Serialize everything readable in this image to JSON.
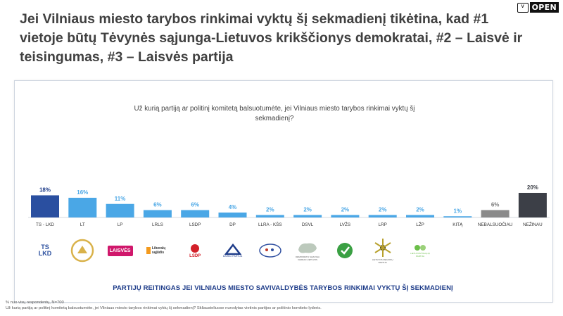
{
  "header": {
    "title": "Jei Vilniaus miesto tarybos rinkimai vyktų šį sekmadienį tikėtina, kad #1 vietoje būtų Tėvynės sąjunga-Lietuvos krikščionys demokratai, #2 – Laisvė ir teisingumas, #3 – Laisvės partija",
    "brand_word": "OPEN",
    "brand_mark": "VILMORUS"
  },
  "question": "Už kurią partiją ar politinį komitetą balsuotumėte, jei Vilniaus miesto tarybos rinkimai vyktų šį sekmadienį?",
  "caption": "PARTIJŲ REITINGAS JEI VILNIAUS MIESTO SAVIVALDYBĖS TARYBOS RINKIMAI VYKTŲ ŠĮ SEKMADIENĮ",
  "footnotes": [
    "% nuo visų respondentų, N=700",
    "Už kurią partiją ar politinį komitetą balsuotumėte, jei Vilniaus miesto tarybos rinkimai vyktų šį sekmadienį? Skliausteliuose nurodytas vietinis partijos ar politinio komiteto lyderis."
  ],
  "party_logos": [
    {
      "icon": "ts-lkd-logo-icon",
      "text": "TS LKD",
      "color": "#2b4f9e"
    },
    {
      "icon": "lt-logo-icon",
      "text": "",
      "color": "#d9b24a"
    },
    {
      "icon": "lp-logo-icon",
      "text": "LAISVĖS",
      "color": "#d0176b"
    },
    {
      "icon": "lrls-logo-icon",
      "text": "Liberalų sąjūdis",
      "color": "#f39a1e"
    },
    {
      "icon": "lsdp-logo-icon",
      "text": "LSDP",
      "color": "#d32029"
    },
    {
      "icon": "dp-logo-icon",
      "text": "DARBO PARTIJA",
      "color": "#1f3d8a"
    },
    {
      "icon": "llra-kss-logo-icon",
      "text": "",
      "color": "#2f4fa0"
    },
    {
      "icon": "dsvl-logo-icon",
      "text": "DEMOKRATŲ SĄJUNGA VARDAN LIETUVOS",
      "color": "#8fa58f"
    },
    {
      "icon": "lvzs-logo-icon",
      "text": "",
      "color": "#3aa043"
    },
    {
      "icon": "lrp-logo-icon",
      "text": "LIETUVOS REGIONŲ PARTIJA",
      "color": "#b8a12d"
    },
    {
      "icon": "lzp-logo-icon",
      "text": "LIETUVOS ŽALIŲJŲ PARTIJA",
      "color": "#6cbf4a"
    }
  ],
  "chart_data": {
    "type": "bar",
    "title": "",
    "xlabel": "",
    "ylabel": "",
    "unit": "%",
    "ylim": [
      0,
      20
    ],
    "categories": [
      "TS - LKD",
      "LT",
      "LP",
      "LRLS",
      "LSDP",
      "DP",
      "LLRA - KŠS",
      "DSVL",
      "LVŽS",
      "LRP",
      "LŽP",
      "KITĄ",
      "NEBALSUOČIAU",
      "NEŽINAU"
    ],
    "values": [
      18,
      16,
      11,
      6,
      6,
      4,
      2,
      2,
      2,
      2,
      2,
      1,
      6,
      20
    ],
    "value_labels": [
      "18%",
      "16%",
      "11%",
      "6%",
      "6%",
      "4%",
      "2%",
      "2%",
      "2%",
      "2%",
      "2%",
      "1%",
      "6%",
      "20%"
    ],
    "colors": [
      "#2a4fa0",
      "#4aa7e6",
      "#4aa7e6",
      "#4aa7e6",
      "#4aa7e6",
      "#4aa7e6",
      "#4aa7e6",
      "#4aa7e6",
      "#4aa7e6",
      "#4aa7e6",
      "#4aa7e6",
      "#4aa7e6",
      "#8a8a8a",
      "#3c3f47"
    ],
    "label_colors": [
      "#1f3d8a",
      "#4aa7e6",
      "#4aa7e6",
      "#4aa7e6",
      "#4aa7e6",
      "#4aa7e6",
      "#4aa7e6",
      "#4aa7e6",
      "#4aa7e6",
      "#4aa7e6",
      "#4aa7e6",
      "#4aa7e6",
      "#7a7a7a",
      "#3c3f47"
    ],
    "grid": false,
    "legend": "none"
  }
}
